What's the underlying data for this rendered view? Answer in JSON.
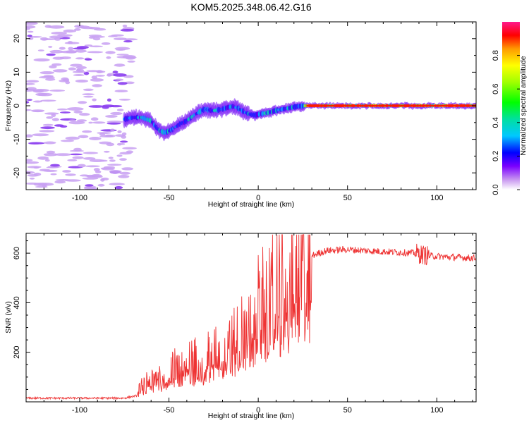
{
  "chart_data": [
    {
      "type": "heatmap",
      "title": "KOM5.2025.348.06.42.G16",
      "xlabel": "Height of straight line (km)",
      "ylabel": "Frequency (Hz)",
      "xlim": [
        -130,
        122
      ],
      "ylim": [
        -25,
        25
      ],
      "xticks": [
        -100,
        -50,
        0,
        50,
        100
      ],
      "yticks": [
        -20,
        -10,
        0,
        10,
        20
      ],
      "colorbar": {
        "label": "Normalized spectral amplitude",
        "range": [
          0,
          1
        ],
        "ticks": [
          "0.0",
          "0.2",
          "0.4",
          "0.6",
          "0.8"
        ]
      },
      "trace": {
        "description_points_km_hz": [
          [
            -75,
            -4
          ],
          [
            -70,
            -3.5
          ],
          [
            -65,
            -3.5
          ],
          [
            -60,
            -4.5
          ],
          [
            -57,
            -6.5
          ],
          [
            -55,
            -7.5
          ],
          [
            -52,
            -8
          ],
          [
            -48,
            -7
          ],
          [
            -44,
            -5.5
          ],
          [
            -40,
            -4.5
          ],
          [
            -35,
            -2.5
          ],
          [
            -30,
            -1
          ],
          [
            -25,
            -1.5
          ],
          [
            -20,
            -1
          ],
          [
            -17,
            -0.5
          ],
          [
            -14,
            -0.2
          ],
          [
            -11,
            -0.8
          ],
          [
            -8,
            -1.8
          ],
          [
            -5,
            -2.5
          ],
          [
            -2,
            -2.8
          ],
          [
            2,
            -2.4
          ],
          [
            6,
            -2
          ],
          [
            10,
            -1.4
          ],
          [
            14,
            -1
          ],
          [
            18,
            -0.6
          ],
          [
            22,
            -0.2
          ],
          [
            27,
            0
          ],
          [
            35,
            0
          ],
          [
            122,
            0
          ]
        ],
        "noise_region_km": [
          -130,
          -71
        ]
      }
    },
    {
      "type": "line",
      "xlabel": "Height of straight line (km)",
      "ylabel": "SNR (v/v)",
      "xlim": [
        -130,
        122
      ],
      "ylim": [
        0,
        680
      ],
      "xticks": [
        -100,
        -50,
        0,
        50,
        100
      ],
      "yticks": [
        200,
        400,
        600
      ],
      "series": [
        {
          "name": "SNR",
          "color": "#ee3333",
          "anchors_km_snr": [
            [
              -130,
              15
            ],
            [
              -110,
              15
            ],
            [
              -90,
              15
            ],
            [
              -75,
              15
            ],
            [
              -68,
              25
            ],
            [
              -66,
              60
            ],
            [
              -60,
              90
            ],
            [
              -50,
              130
            ],
            [
              -40,
              160
            ],
            [
              -30,
              190
            ],
            [
              -20,
              225
            ],
            [
              -10,
              285
            ],
            [
              -5,
              340
            ],
            [
              0,
              390
            ],
            [
              5,
              430
            ],
            [
              10,
              475
            ],
            [
              15,
              510
            ],
            [
              20,
              545
            ],
            [
              25,
              570
            ],
            [
              30,
              590
            ],
            [
              38,
              610
            ],
            [
              50,
              615
            ],
            [
              60,
              610
            ],
            [
              75,
              605
            ],
            [
              88,
              600
            ],
            [
              95,
              590
            ],
            [
              105,
              585
            ],
            [
              122,
              580
            ]
          ]
        }
      ]
    }
  ]
}
